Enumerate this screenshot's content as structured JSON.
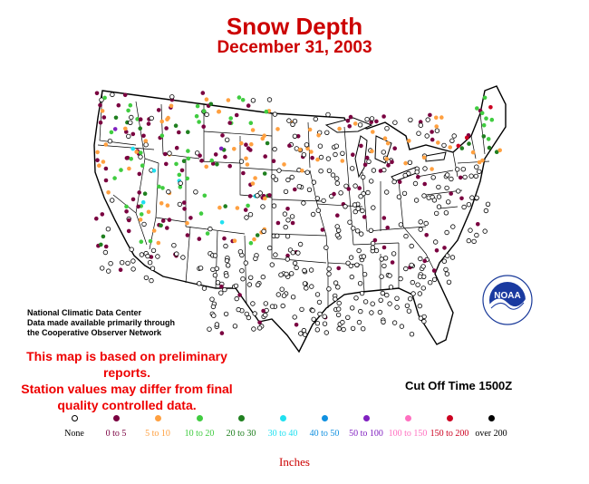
{
  "header": {
    "title": "Snow Depth",
    "date": "December 31, 2003"
  },
  "credit": {
    "line1": "National Climatic Data Center",
    "line2": "Data made available primarily through",
    "line3": "the Cooperative Observer Network"
  },
  "notice": {
    "line1": "This map is based on preliminary reports.",
    "line2": "Station values may differ from final",
    "line3": "quality controlled data."
  },
  "cutoff": "Cut Off Time 1500Z",
  "legend": {
    "units": "Inches",
    "items": [
      {
        "label": "None",
        "color": "#ffffff",
        "outline": "#000000",
        "label_color": "#000000"
      },
      {
        "label": "0 to 5",
        "color": "#7a0040",
        "label_color": "#7a0040"
      },
      {
        "label": "5 to 10",
        "color": "#ffa040",
        "label_color": "#ffa040"
      },
      {
        "label": "10 to 20",
        "color": "#40cc40",
        "label_color": "#40cc40"
      },
      {
        "label": "20 to 30",
        "color": "#208020",
        "label_color": "#208020"
      },
      {
        "label": "30 to 40",
        "color": "#20e0f0",
        "label_color": "#20e0f0"
      },
      {
        "label": "40 to 50",
        "color": "#1090e0",
        "label_color": "#1090e0"
      },
      {
        "label": "50 to 100",
        "color": "#8020c0",
        "label_color": "#8020c0"
      },
      {
        "label": "100 to 150",
        "color": "#ff70c0",
        "label_color": "#ff70c0"
      },
      {
        "label": "150 to 200",
        "color": "#cc0020",
        "label_color": "#cc0020"
      },
      {
        "label": "over 200",
        "color": "#000000",
        "label_color": "#000000"
      }
    ]
  },
  "logo": {
    "name": "noaa-logo",
    "text": "NOAA"
  }
}
